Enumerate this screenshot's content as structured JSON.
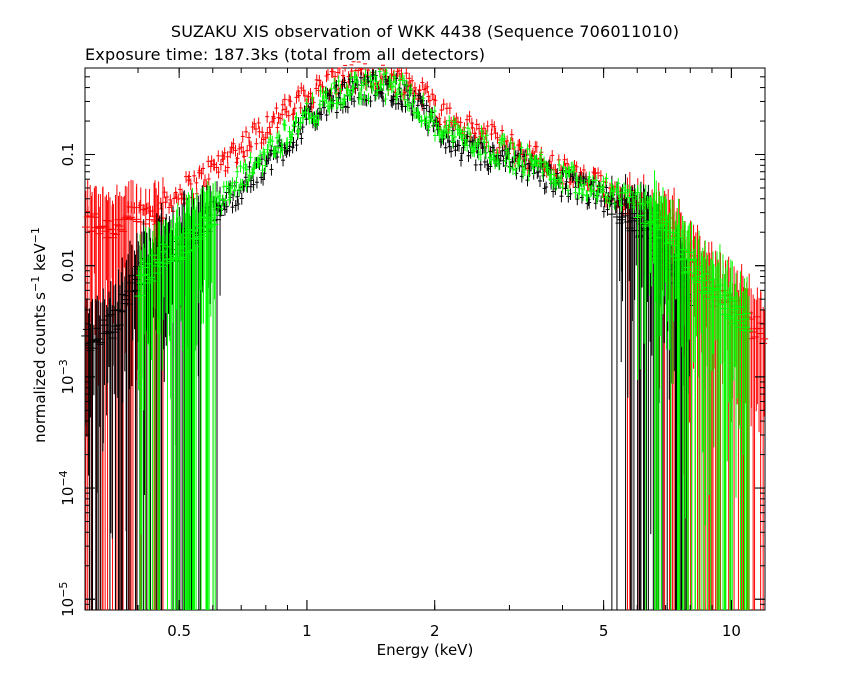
{
  "chart_data": {
    "type": "scatter",
    "title": "SUZAKU XIS observation of WKK 4438 (Sequence 706011010)",
    "subtitle": "Exposure time: 187.3ks (total from all detectors)",
    "xlabel": "Energy (keV)",
    "ylabel_base": "normalized counts s",
    "ylabel_mid": " keV",
    "ylabel_sup": "−1",
    "xscale": "log",
    "yscale": "log",
    "xlim": [
      0.3,
      12.0
    ],
    "ylim": [
      8e-06,
      0.6
    ],
    "x_ticks": [
      {
        "value": 0.5,
        "label": "0.5"
      },
      {
        "value": 1,
        "label": "1"
      },
      {
        "value": 2,
        "label": "2"
      },
      {
        "value": 5,
        "label": "5"
      },
      {
        "value": 10,
        "label": "10"
      }
    ],
    "y_ticks": [
      {
        "value": 1e-05,
        "base": "10",
        "exp": "−5"
      },
      {
        "value": 0.0001,
        "base": "10",
        "exp": "−4"
      },
      {
        "value": 0.001,
        "base": "10",
        "exp": "−3"
      },
      {
        "value": 0.01,
        "base": "0.01",
        "exp": ""
      },
      {
        "value": 0.1,
        "base": "0.1",
        "exp": ""
      }
    ],
    "series": [
      {
        "color": "#ff0000",
        "x": [
          0.3,
          0.35,
          0.4,
          0.45,
          0.5,
          0.55,
          0.6,
          0.7,
          0.8,
          0.9,
          1.0,
          1.1,
          1.2,
          1.3,
          1.4,
          1.5,
          1.6,
          1.7,
          1.8,
          1.9,
          2.0,
          2.2,
          2.5,
          3.0,
          3.5,
          4.0,
          5.0,
          6.0,
          7.0,
          7.5,
          8.0,
          9.0,
          10.0,
          11.0,
          12.0
        ],
        "y": [
          0.025,
          0.022,
          0.028,
          0.032,
          0.045,
          0.055,
          0.075,
          0.12,
          0.18,
          0.25,
          0.33,
          0.42,
          0.48,
          0.52,
          0.52,
          0.5,
          0.48,
          0.45,
          0.4,
          0.34,
          0.27,
          0.2,
          0.16,
          0.12,
          0.09,
          0.07,
          0.05,
          0.035,
          0.022,
          0.015,
          0.01,
          0.006,
          0.004,
          0.003,
          0.0025
        ]
      },
      {
        "color": "#000000",
        "x": [
          0.3,
          0.35,
          0.4,
          0.45,
          0.5,
          0.55,
          0.6,
          0.7,
          0.8,
          0.9,
          1.0,
          1.1,
          1.2,
          1.3,
          1.4,
          1.5,
          1.6,
          1.7,
          1.8,
          1.9,
          2.0,
          2.2,
          2.5,
          3.0,
          3.5,
          4.0,
          5.0,
          6.0,
          7.0,
          8.0
        ],
        "y": [
          0.002,
          0.003,
          0.008,
          0.012,
          0.015,
          0.02,
          0.03,
          0.05,
          0.08,
          0.13,
          0.2,
          0.28,
          0.33,
          0.38,
          0.4,
          0.4,
          0.38,
          0.34,
          0.28,
          0.22,
          0.17,
          0.13,
          0.1,
          0.085,
          0.07,
          0.055,
          0.04,
          0.025,
          0.012,
          0.005
        ]
      },
      {
        "color": "#00ff00",
        "x": [
          0.4,
          0.45,
          0.5,
          0.55,
          0.6,
          0.7,
          0.8,
          0.9,
          1.0,
          1.1,
          1.2,
          1.3,
          1.4,
          1.5,
          1.6,
          1.7,
          1.8,
          1.9,
          2.0,
          2.2,
          2.5,
          3.0,
          3.5,
          4.0,
          5.0,
          6.0,
          7.0,
          8.0,
          9.0,
          10.0,
          11.0
        ],
        "y": [
          0.006,
          0.012,
          0.014,
          0.018,
          0.03,
          0.06,
          0.1,
          0.16,
          0.22,
          0.3,
          0.35,
          0.4,
          0.42,
          0.42,
          0.4,
          0.36,
          0.3,
          0.24,
          0.19,
          0.16,
          0.13,
          0.1,
          0.08,
          0.065,
          0.05,
          0.035,
          0.02,
          0.01,
          0.006,
          0.004,
          0.003
        ]
      }
    ]
  }
}
